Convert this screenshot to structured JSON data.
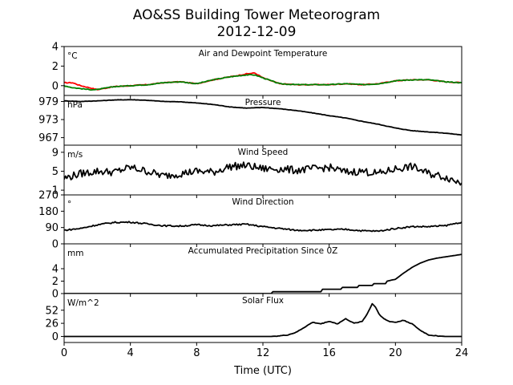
{
  "figure": {
    "title_line1": "AO&SS Building Tower Meteorogram",
    "title_line2": "2012-12-09",
    "xlabel": "Time (UTC)",
    "x_ticks": [
      0,
      4,
      8,
      12,
      16,
      20,
      24
    ],
    "xlim": [
      0,
      24
    ]
  },
  "chart_data": [
    {
      "type": "line",
      "title": "Air and Dewpoint Temperature",
      "unit": "°C",
      "ylim": [
        -1,
        4
      ],
      "yticks": [
        0,
        2,
        4
      ],
      "x": [
        0,
        0.5,
        1,
        1.5,
        2,
        3,
        4,
        5,
        6,
        7,
        8,
        9,
        10,
        11,
        11.5,
        12,
        13,
        14,
        15,
        16,
        17,
        18,
        19,
        20,
        21,
        22,
        23,
        24
      ],
      "series": [
        {
          "color": "#ff0000",
          "values": [
            0.3,
            0.3,
            0.0,
            -0.2,
            -0.4,
            -0.1,
            0.0,
            0.1,
            0.3,
            0.4,
            0.2,
            0.6,
            0.9,
            1.2,
            1.3,
            0.8,
            0.2,
            0.1,
            0.1,
            0.1,
            0.2,
            0.1,
            0.2,
            0.5,
            0.6,
            0.6,
            0.4,
            0.3
          ]
        },
        {
          "color": "#008000",
          "values": [
            0.0,
            -0.2,
            -0.3,
            -0.4,
            -0.4,
            -0.1,
            0.0,
            0.1,
            0.3,
            0.4,
            0.2,
            0.6,
            0.9,
            1.1,
            1.1,
            0.8,
            0.2,
            0.1,
            0.1,
            0.1,
            0.2,
            0.1,
            0.2,
            0.5,
            0.6,
            0.6,
            0.4,
            0.3
          ]
        }
      ]
    },
    {
      "type": "line",
      "title": "Pressure",
      "unit": "hPa",
      "ylim": [
        964.5,
        981.0
      ],
      "yticks": [
        967,
        973,
        979
      ],
      "x": [
        0,
        1,
        2,
        3,
        4,
        5,
        6,
        7,
        8,
        9,
        10,
        11,
        12,
        13,
        14,
        15,
        16,
        17,
        18,
        19,
        20,
        21,
        22,
        23,
        24
      ],
      "series": [
        {
          "color": "#000000",
          "values": [
            979.2,
            979.0,
            979.2,
            979.5,
            979.6,
            979.4,
            979.0,
            978.9,
            978.5,
            978.0,
            977.2,
            976.8,
            977.0,
            976.6,
            976.0,
            975.2,
            974.3,
            973.5,
            972.4,
            971.4,
            970.2,
            969.3,
            968.9,
            968.5,
            967.9
          ]
        }
      ]
    },
    {
      "type": "line",
      "title": "Wind Speed",
      "unit": "m/s",
      "ylim": [
        0,
        10.5
      ],
      "yticks": [
        1,
        5,
        9
      ],
      "x": [
        0,
        1,
        2,
        3,
        4,
        5,
        6,
        7,
        8,
        9,
        10,
        11,
        12,
        13,
        14,
        15,
        16,
        17,
        18,
        19,
        20,
        21,
        22,
        23,
        24
      ],
      "series": [
        {
          "color": "#000000",
          "values": [
            3.5,
            4.5,
            5.0,
            4.8,
            5.8,
            5.0,
            4.0,
            4.5,
            5.0,
            4.8,
            6.0,
            6.2,
            5.5,
            5.5,
            5.2,
            5.5,
            5.8,
            4.8,
            5.0,
            4.5,
            5.5,
            6.0,
            4.5,
            3.8,
            2.5
          ]
        }
      ]
    },
    {
      "type": "line",
      "title": "Wind Direction",
      "unit": "°",
      "ylim": [
        0,
        270
      ],
      "yticks": [
        0,
        90,
        180,
        270
      ],
      "x": [
        0,
        1,
        2,
        3,
        4,
        5,
        6,
        7,
        8,
        9,
        10,
        11,
        12,
        13,
        14,
        15,
        16,
        17,
        18,
        19,
        20,
        21,
        22,
        23,
        24
      ],
      "series": [
        {
          "color": "#000000",
          "values": [
            75,
            85,
            105,
            118,
            120,
            110,
            100,
            98,
            105,
            100,
            105,
            108,
            95,
            85,
            75,
            75,
            78,
            80,
            72,
            70,
            85,
            95,
            95,
            100,
            120
          ]
        }
      ]
    },
    {
      "type": "line",
      "title": "Accumulated Precipitation Since 0Z",
      "unit": "mm",
      "ylim": [
        0,
        8
      ],
      "yticks": [
        0,
        2,
        4
      ],
      "x": [
        0,
        12.5,
        12.6,
        15.5,
        15.6,
        16.7,
        16.8,
        17.7,
        17.8,
        18.6,
        18.7,
        19.4,
        19.5,
        20.0,
        20.5,
        21.0,
        21.5,
        22.0,
        22.5,
        23.0,
        23.5,
        24.0
      ],
      "series": [
        {
          "color": "#000000",
          "values": [
            0.0,
            0.0,
            0.3,
            0.3,
            0.7,
            0.7,
            1.0,
            1.0,
            1.3,
            1.3,
            1.6,
            1.6,
            2.0,
            2.3,
            3.3,
            4.2,
            4.9,
            5.4,
            5.7,
            5.9,
            6.1,
            6.3
          ]
        }
      ]
    },
    {
      "type": "line",
      "title": "Solar Flux",
      "unit": "W/m^2",
      "ylim": [
        -12,
        85
      ],
      "yticks": [
        0,
        26,
        52
      ],
      "x": [
        0,
        12.5,
        13.0,
        13.5,
        14.0,
        14.5,
        15.0,
        15.5,
        16.0,
        16.5,
        17.0,
        17.5,
        18.0,
        18.3,
        18.6,
        18.8,
        19.0,
        19.3,
        19.6,
        20.0,
        20.5,
        21.0,
        21.5,
        22.0,
        22.5,
        23.0,
        24.0
      ],
      "series": [
        {
          "color": "#000000",
          "values": [
            0,
            0,
            1,
            3,
            8,
            18,
            28,
            25,
            30,
            25,
            35,
            26,
            30,
            45,
            65,
            58,
            45,
            35,
            30,
            28,
            32,
            25,
            12,
            3,
            1,
            0,
            0
          ]
        }
      ]
    }
  ]
}
